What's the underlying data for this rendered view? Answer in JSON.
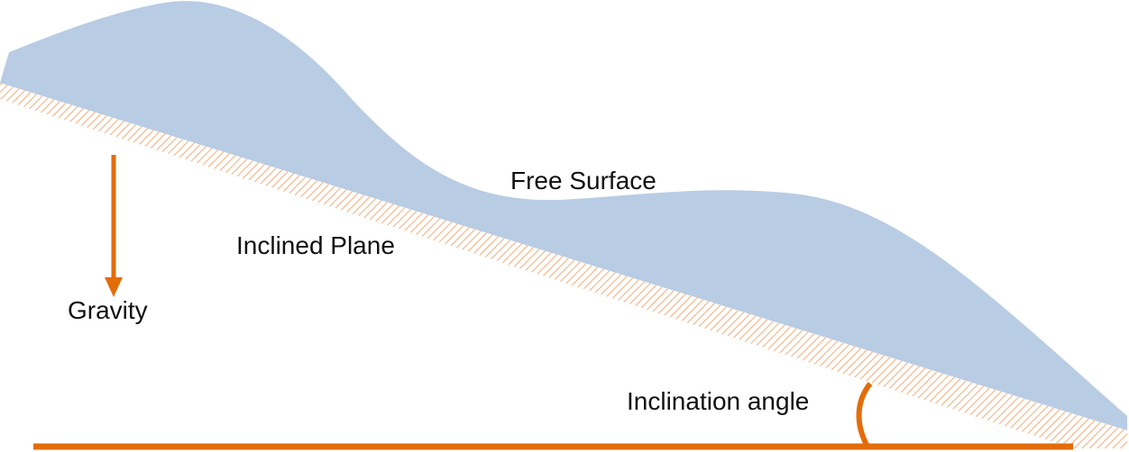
{
  "labels": {
    "free_surface": "Free Surface",
    "inclined_plane": "Inclined Plane",
    "gravity": "Gravity",
    "inclination_angle": "Inclination angle"
  },
  "colors": {
    "fluid": "#b8cce4",
    "plane_hatch": "#f4b183",
    "arrow": "#e36c0a",
    "text": "#111111"
  }
}
